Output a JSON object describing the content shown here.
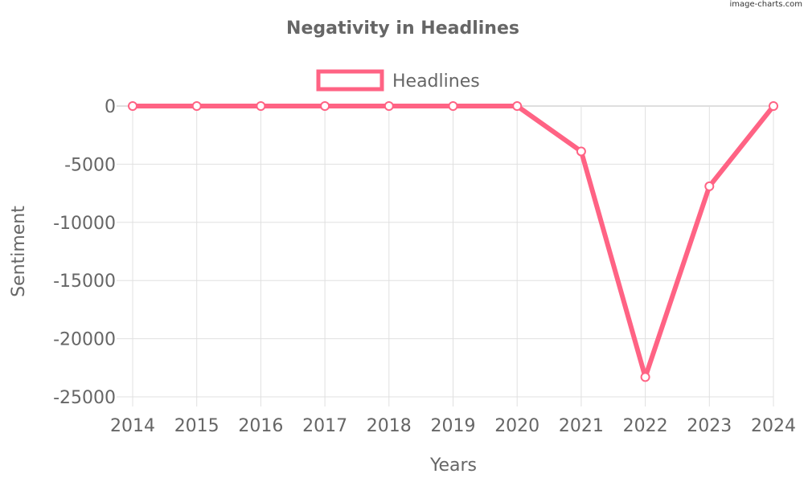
{
  "watermark": "image-charts.com",
  "chart_data": {
    "type": "line",
    "title": "Negativity in Headlines",
    "xlabel": "Years",
    "ylabel": "Sentiment",
    "categories": [
      "2014",
      "2015",
      "2016",
      "2017",
      "2018",
      "2019",
      "2020",
      "2021",
      "2022",
      "2023",
      "2024"
    ],
    "series": [
      {
        "name": "Headlines",
        "values": [
          0,
          0,
          0,
          0,
          0,
          0,
          0,
          -3900,
          -23300,
          -6900,
          0
        ]
      }
    ],
    "ylim": [
      -25000,
      0
    ],
    "yticks": [
      "0",
      "-5000",
      "-10000",
      "-15000",
      "-20000",
      "-25000"
    ],
    "grid": true,
    "legend": "top-center",
    "colors": {
      "series": "#ff6384",
      "text": "#666666",
      "grid": "#e0e0e0",
      "zero_line": "#bdbdbd"
    }
  }
}
